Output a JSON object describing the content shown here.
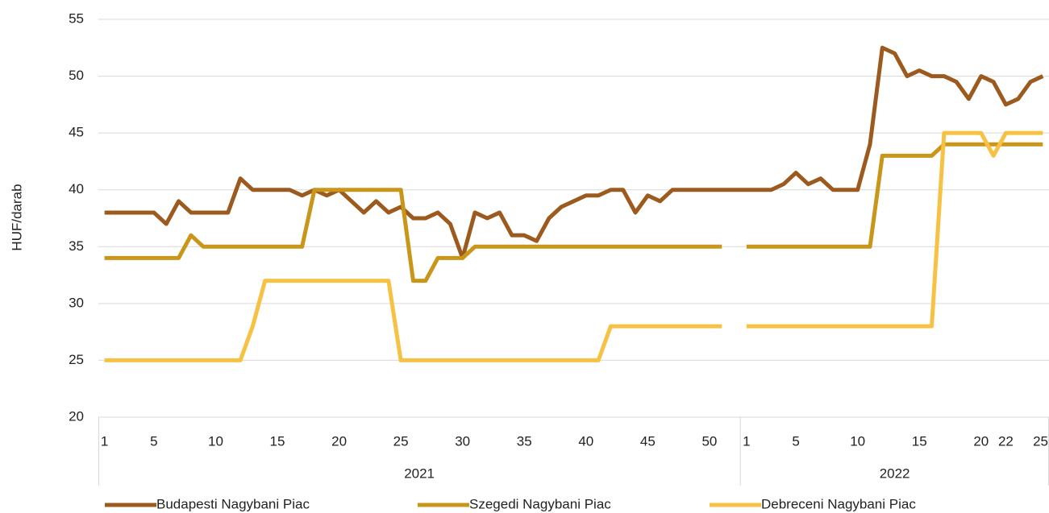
{
  "chart_data": {
    "type": "line",
    "y_label": "HUF/darab",
    "category_groups": [
      {
        "label": "2021",
        "categories": [
          "1",
          null,
          null,
          null,
          "5",
          null,
          null,
          null,
          null,
          "10",
          null,
          null,
          null,
          null,
          "15",
          null,
          null,
          null,
          null,
          "20",
          null,
          null,
          null,
          null,
          "25",
          null,
          null,
          null,
          null,
          "30",
          null,
          null,
          null,
          null,
          "35",
          null,
          null,
          null,
          null,
          "40",
          null,
          null,
          null,
          null,
          "45",
          null,
          null,
          null,
          null,
          "50",
          null,
          null
        ]
      },
      {
        "label": "2022",
        "categories": [
          "1",
          null,
          null,
          null,
          "5",
          null,
          null,
          null,
          null,
          "10",
          null,
          null,
          null,
          null,
          "15",
          null,
          null,
          null,
          null,
          "20",
          null,
          "22",
          null,
          null,
          "25"
        ]
      }
    ],
    "series": [
      {
        "name": "Budapesti Nagybani Piac",
        "color": "#9c5a1e",
        "values": [
          38,
          38,
          38,
          38,
          38,
          37,
          39,
          38,
          38,
          38,
          38,
          41,
          40,
          40,
          40,
          40,
          39.5,
          40,
          39.5,
          40,
          39,
          38,
          39,
          38,
          38.5,
          37.5,
          37.5,
          38,
          37,
          34,
          38,
          37.5,
          38,
          36,
          36,
          35.5,
          37.5,
          38.5,
          39,
          39.5,
          39.5,
          40,
          40,
          38,
          39.5,
          39,
          40,
          40,
          40,
          40,
          40,
          40,
          40,
          40,
          40,
          40.5,
          41.5,
          40.5,
          41,
          40,
          40,
          40,
          44,
          52.5,
          52,
          50,
          50.5,
          50,
          50,
          49.5,
          48,
          50,
          49.5,
          47.5,
          48,
          49.5,
          50
        ]
      },
      {
        "name": "Szegedi Nagybani Piac",
        "color": "#c9961a",
        "values": [
          34,
          34,
          34,
          34,
          34,
          34,
          34,
          36,
          35,
          35,
          35,
          35,
          35,
          35,
          35,
          35,
          35,
          40,
          40,
          40,
          40,
          40,
          40,
          40,
          40,
          32,
          32,
          34,
          34,
          34,
          35,
          35,
          35,
          35,
          35,
          35,
          35,
          35,
          35,
          35,
          35,
          35,
          35,
          35,
          35,
          35,
          35,
          35,
          35,
          35,
          35,
          null,
          35,
          35,
          35,
          35,
          35,
          35,
          35,
          35,
          35,
          35,
          35,
          43,
          43,
          43,
          43,
          43,
          44,
          44,
          44,
          44,
          44,
          44,
          44,
          44,
          44
        ]
      },
      {
        "name": "Debreceni Nagybani Piac",
        "color": "#f7c244",
        "values": [
          25,
          25,
          25,
          25,
          25,
          25,
          25,
          25,
          25,
          25,
          25,
          25,
          28,
          32,
          32,
          32,
          32,
          32,
          32,
          32,
          32,
          32,
          32,
          32,
          25,
          25,
          25,
          25,
          25,
          25,
          25,
          25,
          25,
          25,
          25,
          25,
          25,
          25,
          25,
          25,
          25,
          28,
          28,
          28,
          28,
          28,
          28,
          28,
          28,
          28,
          28,
          null,
          28,
          28,
          28,
          28,
          28,
          28,
          28,
          28,
          28,
          28,
          28,
          28,
          28,
          28,
          28,
          28,
          45,
          45,
          45,
          45,
          43,
          45,
          45,
          45,
          45
        ]
      }
    ],
    "ylim": [
      20,
      55
    ],
    "yticks": [
      20,
      25,
      30,
      35,
      40,
      45,
      50,
      55
    ],
    "grid": true
  }
}
